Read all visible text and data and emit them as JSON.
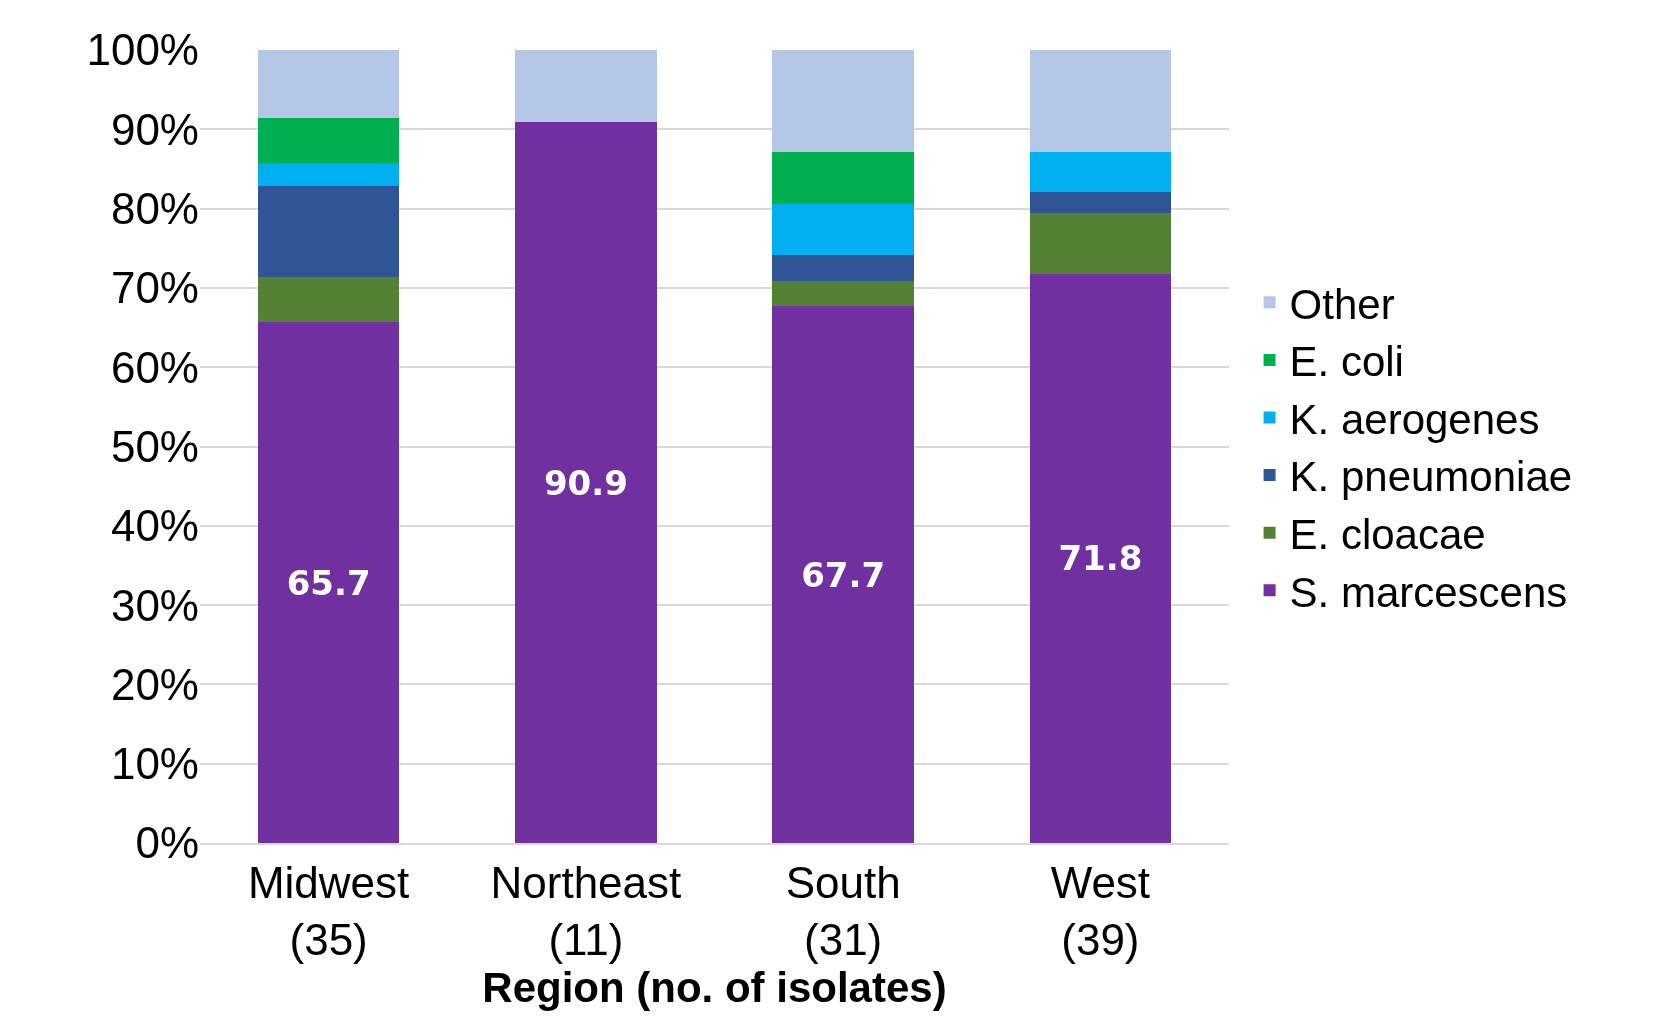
{
  "chart_data": {
    "type": "bar",
    "stacked": true,
    "xlabel": "Region (no. of isolates)",
    "categories": [
      "Midwest\n(35)",
      "Northeast\n(11)",
      "South\n(31)",
      "West\n(39)"
    ],
    "series": [
      {
        "name": "S. marcescens",
        "color": "#7030a0",
        "values": [
          65.7,
          90.9,
          67.7,
          71.8
        ],
        "value_labels": [
          "65.7",
          "90.9",
          "67.7",
          "71.8"
        ]
      },
      {
        "name": "E. cloacae",
        "color": "#548235",
        "values": [
          5.7,
          0,
          3.2,
          7.7
        ]
      },
      {
        "name": "K. pneumoniae",
        "color": "#2f5597",
        "values": [
          11.4,
          0,
          3.2,
          2.6
        ]
      },
      {
        "name": "K. aerogenes",
        "color": "#00b0f0",
        "values": [
          2.9,
          0,
          6.5,
          5.1
        ]
      },
      {
        "name": "E. coli",
        "color": "#00b050",
        "values": [
          5.7,
          0,
          6.5,
          0
        ]
      },
      {
        "name": "Other",
        "color": "#b4c7e7",
        "values": [
          8.6,
          9.1,
          12.9,
          12.8
        ]
      }
    ],
    "ylim": [
      0,
      100
    ],
    "yticks": [
      {
        "value": 0,
        "label": "0%"
      },
      {
        "value": 10,
        "label": "10%"
      },
      {
        "value": 20,
        "label": "20%"
      },
      {
        "value": 30,
        "label": "30%"
      },
      {
        "value": 40,
        "label": "40%"
      },
      {
        "value": 50,
        "label": "50%"
      },
      {
        "value": 60,
        "label": "60%"
      },
      {
        "value": 70,
        "label": "70%"
      },
      {
        "value": 80,
        "label": "80%"
      },
      {
        "value": 90,
        "label": "90%"
      },
      {
        "value": 100,
        "label": "100%"
      }
    ],
    "grid": "y",
    "legend": "right"
  }
}
